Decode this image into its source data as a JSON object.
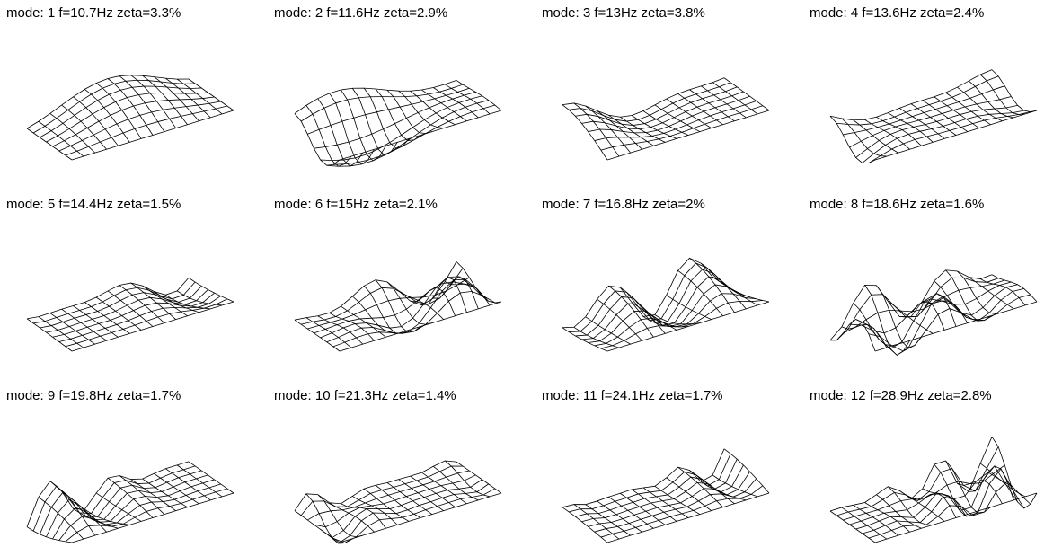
{
  "chart_data": [
    {
      "type": "wireframe",
      "title": "mode: 1 f=10.7Hz  zeta=3.3%"
    },
    {
      "type": "wireframe",
      "title": "mode: 2 f=11.6Hz  zeta=2.9%"
    },
    {
      "type": "wireframe",
      "title": "mode: 3 f=13Hz  zeta=3.8%"
    },
    {
      "type": "wireframe",
      "title": "mode: 4 f=13.6Hz  zeta=2.4%"
    },
    {
      "type": "wireframe",
      "title": "mode: 5 f=14.4Hz  zeta=1.5%"
    },
    {
      "type": "wireframe",
      "title": "mode: 6 f=15Hz  zeta=2.1%"
    },
    {
      "type": "wireframe",
      "title": "mode: 7 f=16.8Hz  zeta=2%"
    },
    {
      "type": "wireframe",
      "title": "mode: 8 f=18.6Hz  zeta=1.6%"
    },
    {
      "type": "wireframe",
      "title": "mode: 9 f=19.8Hz  zeta=1.7%"
    },
    {
      "type": "wireframe",
      "title": "mode: 10 f=21.3Hz  zeta=1.4%"
    },
    {
      "type": "wireframe",
      "title": "mode: 11 f=24.1Hz  zeta=1.7%"
    },
    {
      "type": "wireframe",
      "title": "mode: 12 f=28.9Hz  zeta=2.8%"
    }
  ]
}
